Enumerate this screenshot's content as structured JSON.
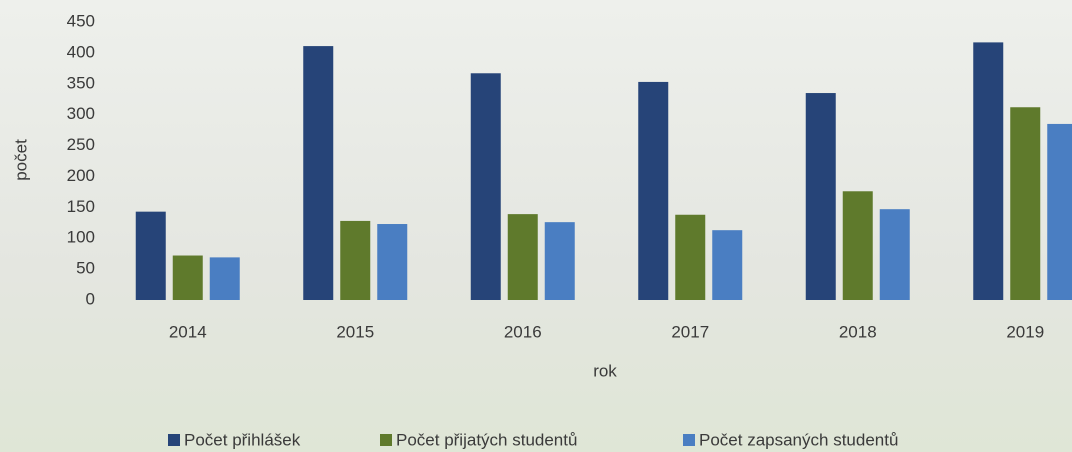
{
  "chart_data": {
    "type": "bar",
    "x_label": "rok",
    "y_label": "počet",
    "categories": [
      "2014",
      "2015",
      "2016",
      "2017",
      "2018",
      "2019"
    ],
    "series": [
      {
        "name": "Počet přihlášek",
        "color": "#264478",
        "values": [
          143,
          411,
          367,
          353,
          335,
          417
        ]
      },
      {
        "name": "Počet přijatých studentů",
        "color": "#5f7a2c",
        "values": [
          72,
          128,
          139,
          138,
          176,
          312
        ]
      },
      {
        "name": "Počet zapsaných studentů",
        "color": "#4a7ec2",
        "values": [
          69,
          123,
          126,
          113,
          147,
          285
        ]
      }
    ],
    "ylim": [
      0,
      450
    ],
    "yticks": [
      0,
      50,
      100,
      150,
      200,
      250,
      300,
      350,
      400,
      450
    ],
    "grid": false,
    "legend": "bottom"
  }
}
